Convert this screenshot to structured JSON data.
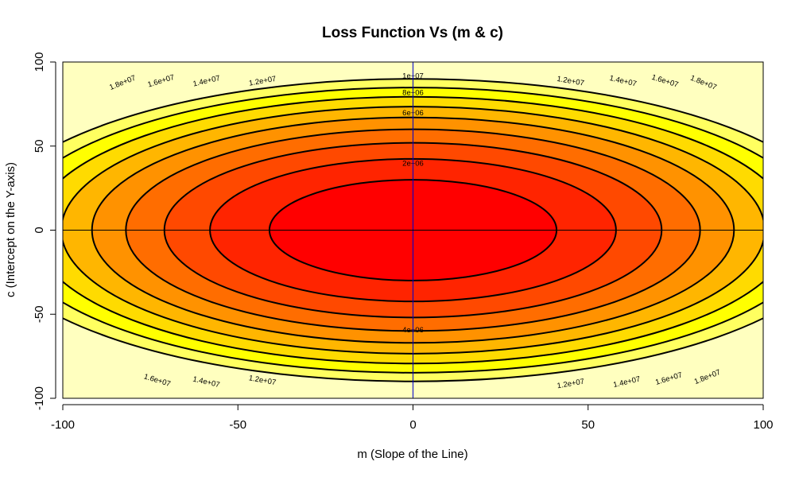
{
  "chart_data": {
    "type": "heatmap",
    "title": "Loss Function Vs (m & c)",
    "xlabel": "m (Slope of the Line)",
    "ylabel": "c (Intercept on the Y-axis)",
    "xlim": [
      -100,
      100
    ],
    "ylim": [
      -100,
      100
    ],
    "x_ticks": [
      -100,
      -50,
      0,
      50,
      100
    ],
    "y_ticks": [
      -100,
      -50,
      0,
      50,
      100
    ],
    "x_tick_labels": [
      "-100",
      "-50",
      "0",
      "50",
      "100"
    ],
    "y_tick_labels": [
      "-100",
      "-50",
      "0",
      "50",
      "100"
    ],
    "fill_levels": [
      0,
      2000000,
      4000000,
      6000000,
      8000000,
      10000000,
      12000000,
      14000000,
      16000000,
      18000000
    ],
    "fill_colors": [
      "#FF0000",
      "#FF2400",
      "#FF4900",
      "#FF6D00",
      "#FF9200",
      "#FFB600",
      "#FFDB00",
      "#FFFF00",
      "#FFFF60",
      "#FFFFBF"
    ],
    "contour_levels": [
      2000000,
      4000000,
      6000000,
      8000000,
      10000000,
      12000000,
      14000000,
      16000000,
      18000000
    ],
    "contour_labels": [
      {
        "text": "2e+06",
        "m": 0,
        "c": 40,
        "angle": 0
      },
      {
        "text": "4e+06",
        "m": 0,
        "c": -59,
        "angle": 0
      },
      {
        "text": "6e+06",
        "m": 0,
        "c": 70,
        "angle": 0
      },
      {
        "text": "8e+06",
        "m": 0,
        "c": 82,
        "angle": 0
      },
      {
        "text": "1e+07",
        "m": 0,
        "c": 92,
        "angle": 0
      },
      {
        "text": "1.2e+07",
        "m": -43,
        "c": 89,
        "angle": -10
      },
      {
        "text": "1.2e+07",
        "m": 45,
        "c": 89,
        "angle": 10
      },
      {
        "text": "1.4e+07",
        "m": -59,
        "c": 89,
        "angle": -13
      },
      {
        "text": "1.4e+07",
        "m": 60,
        "c": 89,
        "angle": 13
      },
      {
        "text": "1.6e+07",
        "m": -72,
        "c": 89,
        "angle": -17
      },
      {
        "text": "1.6e+07",
        "m": 72,
        "c": 89,
        "angle": 17
      },
      {
        "text": "1.8e+07",
        "m": -83,
        "c": 88,
        "angle": -22
      },
      {
        "text": "1.8e+07",
        "m": 83,
        "c": 88,
        "angle": 22
      },
      {
        "text": "1.2e+07",
        "m": -43,
        "c": -89,
        "angle": 10
      },
      {
        "text": "1.2e+07",
        "m": 45,
        "c": -91,
        "angle": -10
      },
      {
        "text": "1.4e+07",
        "m": -59,
        "c": -90,
        "angle": 13
      },
      {
        "text": "1.4e+07",
        "m": 61,
        "c": -90,
        "angle": -13
      },
      {
        "text": "1.6e+07",
        "m": -73,
        "c": -89,
        "angle": 17
      },
      {
        "text": "1.6e+07",
        "m": 73,
        "c": -88,
        "angle": -17
      },
      {
        "text": "1.8e+07",
        "m": 84,
        "c": -87,
        "angle": -22
      }
    ],
    "reference_lines": {
      "vertical_m": 0,
      "horizontal_c": 0,
      "color": "#0000CC"
    },
    "grid": false,
    "legend": "none"
  }
}
